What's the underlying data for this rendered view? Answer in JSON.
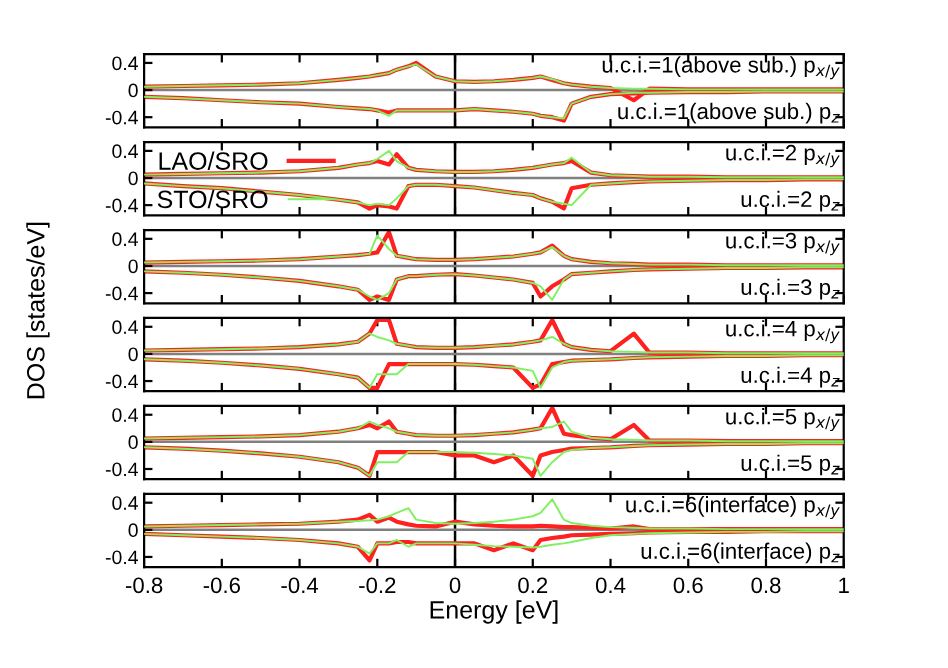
{
  "chart_data": [
    {
      "type": "line",
      "ylabel": "DOS [states/eV]",
      "annotations": [
        "u.c.i.=1(above sub.) p$_{x/y}$",
        "u.c.i.=1(above sub.) p$_{z}$"
      ],
      "tick_labels": "y",
      "x": [
        -0.8,
        -0.7,
        -0.6,
        -0.5,
        -0.4,
        -0.3,
        -0.25,
        -0.22,
        -0.2,
        -0.17,
        -0.15,
        -0.12,
        -0.1,
        -0.05,
        0,
        0.05,
        0.1,
        0.15,
        0.2,
        0.22,
        0.25,
        0.28,
        0.3,
        0.35,
        0.4,
        0.46,
        0.5,
        0.6,
        0.7,
        0.8,
        0.9,
        1.0
      ],
      "xlim": [
        -0.8,
        1
      ],
      "xticks": [
        -0.8,
        -0.6,
        -0.4,
        -0.2,
        0,
        0.2,
        0.4,
        0.6,
        0.8,
        1
      ],
      "ylim": [
        -0.55,
        0.53
      ],
      "yticks": [
        -0.4,
        0,
        0.4
      ],
      "ref_lines": [
        {
          "axis": "x",
          "value": 0,
          "color": "#000000"
        },
        {
          "axis": "y",
          "value": 0,
          "color": "#808080"
        }
      ],
      "series": [
        {
          "color": "#ff2020",
          "values": [
            0.05,
            0.06,
            0.07,
            0.08,
            0.1,
            0.15,
            0.18,
            0.2,
            0.22,
            0.25,
            0.3,
            0.35,
            0.4,
            0.2,
            0.13,
            0.12,
            0.13,
            0.15,
            0.18,
            0.2,
            0.15,
            0.1,
            0.08,
            0.05,
            0.03,
            -0.15,
            0.02,
            0.01,
            0.01,
            0.01,
            0.01,
            0.01
          ]
        },
        {
          "color": "#80f060",
          "values": [
            0.05,
            0.06,
            0.07,
            0.08,
            0.1,
            0.15,
            0.18,
            0.2,
            0.22,
            0.25,
            0.3,
            0.35,
            0.38,
            0.2,
            0.13,
            0.12,
            0.13,
            0.15,
            0.18,
            0.2,
            0.16,
            0.1,
            0.08,
            0.05,
            0.03,
            0.02,
            0.02,
            0.01,
            0.01,
            0.01,
            0.01,
            0.01
          ]
        },
        {
          "color": "#ff2020",
          "values": [
            -0.1,
            -0.12,
            -0.15,
            -0.18,
            -0.2,
            -0.25,
            -0.27,
            -0.28,
            -0.3,
            -0.33,
            -0.3,
            -0.3,
            -0.3,
            -0.3,
            -0.3,
            -0.28,
            -0.3,
            -0.32,
            -0.35,
            -0.38,
            -0.4,
            -0.45,
            -0.2,
            -0.1,
            -0.06,
            -0.05,
            -0.04,
            -0.03,
            -0.03,
            -0.02,
            -0.02,
            -0.02
          ]
        },
        {
          "color": "#80f060",
          "values": [
            -0.1,
            -0.12,
            -0.15,
            -0.18,
            -0.2,
            -0.25,
            -0.27,
            -0.28,
            -0.3,
            -0.38,
            -0.3,
            -0.3,
            -0.3,
            -0.3,
            -0.3,
            -0.28,
            -0.3,
            -0.32,
            -0.35,
            -0.38,
            -0.4,
            -0.42,
            -0.2,
            -0.1,
            -0.06,
            -0.04,
            -0.04,
            -0.03,
            -0.03,
            -0.02,
            -0.02,
            -0.02
          ]
        }
      ]
    },
    {
      "type": "line",
      "annotations": [
        "u.c.i.=2 p$_{x/y}$",
        "u.c.i.=2 p$_{z}$"
      ],
      "tick_labels": "y",
      "legend": "left",
      "x": [
        -0.8,
        -0.7,
        -0.6,
        -0.5,
        -0.4,
        -0.3,
        -0.25,
        -0.22,
        -0.2,
        -0.17,
        -0.15,
        -0.12,
        -0.1,
        -0.05,
        0,
        0.05,
        0.1,
        0.15,
        0.2,
        0.22,
        0.25,
        0.28,
        0.3,
        0.35,
        0.4,
        0.46,
        0.5,
        0.6,
        0.7,
        0.8,
        0.9,
        1.0
      ],
      "xlim": [
        -0.8,
        1
      ],
      "xticks": [
        -0.8,
        -0.6,
        -0.4,
        -0.2,
        0,
        0.2,
        0.4,
        0.6,
        0.8,
        1
      ],
      "ylim": [
        -0.55,
        0.53
      ],
      "yticks": [
        -0.4,
        0,
        0.4
      ],
      "ref_lines": [
        {
          "axis": "x",
          "value": 0,
          "color": "#000000"
        },
        {
          "axis": "y",
          "value": 0,
          "color": "#808080"
        }
      ],
      "series": [
        {
          "name": "LAO/SRO",
          "color": "#ff2020",
          "values": [
            0.05,
            0.06,
            0.07,
            0.08,
            0.1,
            0.15,
            0.2,
            0.22,
            0.25,
            0.2,
            0.35,
            0.15,
            0.12,
            0.1,
            0.09,
            0.09,
            0.1,
            0.12,
            0.15,
            0.17,
            0.2,
            0.22,
            0.25,
            0.08,
            0.04,
            0.03,
            0.02,
            0.02,
            0.01,
            0.01,
            0.01,
            0.01
          ]
        },
        {
          "name": "STO/SRO",
          "color": "#80f060",
          "values": [
            0.05,
            0.06,
            0.07,
            0.08,
            0.1,
            0.15,
            0.2,
            0.22,
            0.28,
            0.4,
            0.25,
            0.15,
            0.12,
            0.1,
            0.09,
            0.09,
            0.1,
            0.12,
            0.15,
            0.17,
            0.2,
            0.22,
            0.3,
            0.08,
            0.04,
            0.03,
            0.02,
            0.02,
            0.01,
            0.01,
            0.01,
            0.01
          ]
        },
        {
          "color": "#ff2020",
          "values": [
            -0.08,
            -0.12,
            -0.15,
            -0.2,
            -0.25,
            -0.32,
            -0.36,
            -0.45,
            -0.4,
            -0.42,
            -0.45,
            -0.12,
            -0.1,
            -0.1,
            -0.12,
            -0.14,
            -0.18,
            -0.22,
            -0.25,
            -0.3,
            -0.35,
            -0.45,
            -0.15,
            -0.1,
            -0.08,
            -0.06,
            -0.05,
            -0.04,
            -0.03,
            -0.03,
            -0.02,
            -0.02
          ]
        },
        {
          "color": "#80f060",
          "values": [
            -0.08,
            -0.12,
            -0.15,
            -0.2,
            -0.25,
            -0.32,
            -0.36,
            -0.4,
            -0.38,
            -0.4,
            -0.3,
            -0.12,
            -0.1,
            -0.1,
            -0.12,
            -0.14,
            -0.18,
            -0.22,
            -0.25,
            -0.3,
            -0.35,
            -0.38,
            -0.4,
            -0.1,
            -0.08,
            -0.06,
            -0.05,
            -0.04,
            -0.03,
            -0.03,
            -0.02,
            -0.02
          ]
        }
      ]
    },
    {
      "type": "line",
      "annotations": [
        "u.c.i.=3 p$_{x/y}$",
        "u.c.i.=3 p$_{z}$"
      ],
      "tick_labels": "y",
      "x": [
        -0.8,
        -0.7,
        -0.6,
        -0.5,
        -0.4,
        -0.3,
        -0.25,
        -0.22,
        -0.2,
        -0.17,
        -0.15,
        -0.12,
        -0.1,
        -0.05,
        0,
        0.05,
        0.1,
        0.15,
        0.2,
        0.22,
        0.25,
        0.28,
        0.3,
        0.35,
        0.4,
        0.46,
        0.5,
        0.6,
        0.7,
        0.8,
        0.9,
        1.0
      ],
      "xlim": [
        -0.8,
        1
      ],
      "xticks": [
        -0.8,
        -0.6,
        -0.4,
        -0.2,
        0,
        0.2,
        0.4,
        0.6,
        0.8,
        1
      ],
      "ylim": [
        -0.55,
        0.53
      ],
      "yticks": [
        -0.4,
        0,
        0.4
      ],
      "ref_lines": [
        {
          "axis": "x",
          "value": 0,
          "color": "#000000"
        },
        {
          "axis": "y",
          "value": 0,
          "color": "#808080"
        }
      ],
      "series": [
        {
          "color": "#ff2020",
          "values": [
            0.05,
            0.06,
            0.07,
            0.08,
            0.1,
            0.14,
            0.16,
            0.18,
            0.2,
            0.5,
            0.15,
            0.12,
            0.1,
            0.09,
            0.09,
            0.1,
            0.12,
            0.14,
            0.18,
            0.2,
            0.3,
            0.15,
            0.1,
            0.06,
            0.04,
            0.03,
            0.02,
            0.02,
            0.01,
            0.01,
            0.01,
            0.01
          ]
        },
        {
          "color": "#80f060",
          "values": [
            0.05,
            0.06,
            0.07,
            0.08,
            0.1,
            0.14,
            0.16,
            0.18,
            0.45,
            0.25,
            0.15,
            0.12,
            0.1,
            0.09,
            0.09,
            0.1,
            0.12,
            0.14,
            0.18,
            0.2,
            0.28,
            0.15,
            0.1,
            0.06,
            0.04,
            0.03,
            0.02,
            0.02,
            0.01,
            0.01,
            0.01,
            0.01
          ]
        },
        {
          "color": "#ff2020",
          "values": [
            -0.08,
            -0.1,
            -0.13,
            -0.17,
            -0.22,
            -0.3,
            -0.35,
            -0.5,
            -0.45,
            -0.5,
            -0.2,
            -0.15,
            -0.15,
            -0.13,
            -0.12,
            -0.14,
            -0.17,
            -0.2,
            -0.25,
            -0.45,
            -0.3,
            -0.2,
            -0.12,
            -0.1,
            -0.08,
            -0.06,
            -0.05,
            -0.04,
            -0.03,
            -0.03,
            -0.02,
            -0.02
          ]
        },
        {
          "color": "#80f060",
          "values": [
            -0.08,
            -0.1,
            -0.13,
            -0.17,
            -0.22,
            -0.3,
            -0.35,
            -0.45,
            -0.5,
            -0.4,
            -0.2,
            -0.15,
            -0.15,
            -0.13,
            -0.12,
            -0.14,
            -0.17,
            -0.2,
            -0.25,
            -0.3,
            -0.5,
            -0.2,
            -0.12,
            -0.1,
            -0.08,
            -0.06,
            -0.05,
            -0.04,
            -0.03,
            -0.03,
            -0.02,
            -0.02
          ]
        }
      ]
    },
    {
      "type": "line",
      "annotations": [
        "u.c.i.=4 p$_{x/y}$",
        "u.c.i.=4 p$_{z}$"
      ],
      "tick_labels": "y",
      "x": [
        -0.8,
        -0.7,
        -0.6,
        -0.5,
        -0.4,
        -0.3,
        -0.25,
        -0.22,
        -0.2,
        -0.17,
        -0.15,
        -0.12,
        -0.1,
        -0.05,
        0,
        0.05,
        0.1,
        0.15,
        0.2,
        0.22,
        0.25,
        0.28,
        0.3,
        0.35,
        0.4,
        0.46,
        0.5,
        0.6,
        0.7,
        0.8,
        0.9,
        1.0
      ],
      "xlim": [
        -0.8,
        1
      ],
      "xticks": [
        -0.8,
        -0.6,
        -0.4,
        -0.2,
        0,
        0.2,
        0.4,
        0.6,
        0.8,
        1
      ],
      "ylim": [
        -0.55,
        0.53
      ],
      "yticks": [
        -0.4,
        0,
        0.4
      ],
      "ref_lines": [
        {
          "axis": "x",
          "value": 0,
          "color": "#000000"
        },
        {
          "axis": "y",
          "value": 0,
          "color": "#808080"
        }
      ],
      "series": [
        {
          "color": "#ff2020",
          "values": [
            0.05,
            0.06,
            0.07,
            0.08,
            0.1,
            0.14,
            0.18,
            0.3,
            0.5,
            0.5,
            0.15,
            0.12,
            0.1,
            0.09,
            0.09,
            0.1,
            0.12,
            0.14,
            0.18,
            0.2,
            0.5,
            0.15,
            0.1,
            0.06,
            0.04,
            0.3,
            0.02,
            0.02,
            0.01,
            0.01,
            0.01,
            0.01
          ]
        },
        {
          "color": "#80f060",
          "values": [
            0.05,
            0.06,
            0.07,
            0.08,
            0.1,
            0.14,
            0.18,
            0.3,
            0.25,
            0.2,
            0.15,
            0.12,
            0.1,
            0.09,
            0.09,
            0.1,
            0.12,
            0.14,
            0.18,
            0.2,
            0.25,
            0.15,
            0.1,
            0.06,
            0.04,
            0.03,
            0.02,
            0.02,
            0.01,
            0.01,
            0.01,
            0.01
          ]
        },
        {
          "color": "#ff2020",
          "values": [
            -0.08,
            -0.1,
            -0.13,
            -0.17,
            -0.22,
            -0.3,
            -0.35,
            -0.5,
            -0.5,
            -0.15,
            -0.15,
            -0.15,
            -0.15,
            -0.15,
            -0.15,
            -0.16,
            -0.18,
            -0.2,
            -0.5,
            -0.45,
            -0.15,
            -0.12,
            -0.1,
            -0.09,
            -0.08,
            -0.06,
            -0.05,
            -0.04,
            -0.03,
            -0.03,
            -0.02,
            -0.02
          ]
        },
        {
          "color": "#80f060",
          "values": [
            -0.08,
            -0.1,
            -0.13,
            -0.17,
            -0.22,
            -0.3,
            -0.35,
            -0.5,
            -0.3,
            -0.3,
            -0.3,
            -0.15,
            -0.15,
            -0.15,
            -0.15,
            -0.16,
            -0.18,
            -0.2,
            -0.25,
            -0.5,
            -0.2,
            -0.12,
            -0.1,
            -0.09,
            -0.08,
            -0.06,
            -0.05,
            -0.04,
            -0.03,
            -0.03,
            -0.02,
            -0.02
          ]
        }
      ]
    },
    {
      "type": "line",
      "annotations": [
        "u.c.i.=5 p$_{x/y}$",
        "u.c.i.=5 p$_{z}$"
      ],
      "tick_labels": "y",
      "x": [
        -0.8,
        -0.7,
        -0.6,
        -0.5,
        -0.4,
        -0.3,
        -0.25,
        -0.22,
        -0.2,
        -0.17,
        -0.15,
        -0.12,
        -0.1,
        -0.05,
        0,
        0.05,
        0.1,
        0.15,
        0.2,
        0.22,
        0.25,
        0.28,
        0.3,
        0.35,
        0.4,
        0.46,
        0.5,
        0.6,
        0.7,
        0.8,
        0.9,
        1.0
      ],
      "xlim": [
        -0.8,
        1
      ],
      "xticks": [
        -0.8,
        -0.6,
        -0.4,
        -0.2,
        0,
        0.2,
        0.4,
        0.6,
        0.8,
        1
      ],
      "ylim": [
        -0.55,
        0.53
      ],
      "yticks": [
        -0.4,
        0,
        0.4
      ],
      "ref_lines": [
        {
          "axis": "x",
          "value": 0,
          "color": "#000000"
        },
        {
          "axis": "y",
          "value": 0,
          "color": "#808080"
        }
      ],
      "series": [
        {
          "color": "#ff2020",
          "values": [
            0.05,
            0.06,
            0.07,
            0.08,
            0.1,
            0.15,
            0.2,
            0.25,
            0.2,
            0.3,
            0.15,
            0.12,
            0.1,
            0.09,
            0.09,
            0.1,
            0.12,
            0.14,
            0.18,
            0.2,
            0.5,
            0.12,
            0.1,
            0.06,
            0.04,
            0.25,
            0.02,
            0.02,
            0.01,
            0.01,
            0.01,
            0.01
          ]
        },
        {
          "color": "#80f060",
          "values": [
            0.05,
            0.06,
            0.07,
            0.08,
            0.1,
            0.15,
            0.2,
            0.3,
            0.25,
            0.2,
            0.15,
            0.12,
            0.1,
            0.09,
            0.09,
            0.1,
            0.12,
            0.14,
            0.18,
            0.2,
            0.22,
            0.3,
            0.15,
            0.06,
            0.04,
            0.03,
            0.02,
            0.02,
            0.01,
            0.01,
            0.01,
            0.01
          ]
        },
        {
          "color": "#ff2020",
          "values": [
            -0.08,
            -0.1,
            -0.13,
            -0.17,
            -0.22,
            -0.3,
            -0.38,
            -0.5,
            -0.15,
            -0.15,
            -0.15,
            -0.15,
            -0.15,
            -0.15,
            -0.2,
            -0.2,
            -0.3,
            -0.2,
            -0.5,
            -0.2,
            -0.15,
            -0.12,
            -0.1,
            -0.09,
            -0.08,
            -0.06,
            -0.05,
            -0.04,
            -0.03,
            -0.03,
            -0.02,
            -0.02
          ]
        },
        {
          "color": "#80f060",
          "values": [
            -0.08,
            -0.1,
            -0.13,
            -0.17,
            -0.22,
            -0.3,
            -0.38,
            -0.5,
            -0.3,
            -0.3,
            -0.3,
            -0.15,
            -0.15,
            -0.15,
            -0.15,
            -0.16,
            -0.18,
            -0.2,
            -0.25,
            -0.5,
            -0.3,
            -0.15,
            -0.12,
            -0.09,
            -0.08,
            -0.06,
            -0.05,
            -0.04,
            -0.03,
            -0.03,
            -0.02,
            -0.02
          ]
        }
      ]
    },
    {
      "type": "line",
      "xlabel": "Energy [eV]",
      "annotations": [
        "u.c.i.=6(interface) p$_{x/y}$",
        "u.c.i.=6(interface) p$_{z}$"
      ],
      "x": [
        -0.8,
        -0.7,
        -0.6,
        -0.5,
        -0.4,
        -0.3,
        -0.25,
        -0.22,
        -0.2,
        -0.17,
        -0.15,
        -0.12,
        -0.1,
        -0.05,
        0,
        0.05,
        0.1,
        0.15,
        0.2,
        0.22,
        0.25,
        0.28,
        0.3,
        0.35,
        0.4,
        0.46,
        0.5,
        0.6,
        0.7,
        0.8,
        0.9,
        1.0
      ],
      "xlim": [
        -0.8,
        1
      ],
      "xticks": [
        -0.8,
        -0.6,
        -0.4,
        -0.2,
        0,
        0.2,
        0.4,
        0.6,
        0.8,
        1
      ],
      "ylim": [
        -0.55,
        0.53
      ],
      "yticks": [
        -0.4,
        0,
        0.4
      ],
      "ref_lines": [
        {
          "axis": "x",
          "value": 0,
          "color": "#000000"
        },
        {
          "axis": "y",
          "value": 0,
          "color": "#808080"
        }
      ],
      "series": [
        {
          "color": "#ff2020",
          "values": [
            0.05,
            0.06,
            0.07,
            0.08,
            0.09,
            0.12,
            0.15,
            0.22,
            0.12,
            0.18,
            0.12,
            0.08,
            0.06,
            0.05,
            0.12,
            0.08,
            0.06,
            0.05,
            0.05,
            0.06,
            0.05,
            0.04,
            0.04,
            0.03,
            0.02,
            0.05,
            0.01,
            0.01,
            0.01,
            0.01,
            0.01,
            0.01
          ]
        },
        {
          "color": "#80f060",
          "values": [
            0.05,
            0.06,
            0.07,
            0.08,
            0.09,
            0.12,
            0.13,
            0.14,
            0.15,
            0.2,
            0.25,
            0.32,
            0.15,
            0.1,
            0.09,
            0.1,
            0.12,
            0.15,
            0.2,
            0.25,
            0.45,
            0.15,
            0.1,
            0.06,
            0.04,
            0.03,
            0.02,
            0.02,
            0.01,
            0.01,
            0.01,
            0.01
          ]
        },
        {
          "color": "#ff2020",
          "values": [
            -0.06,
            -0.08,
            -0.1,
            -0.12,
            -0.15,
            -0.2,
            -0.25,
            -0.45,
            -0.2,
            -0.2,
            -0.18,
            -0.18,
            -0.2,
            -0.2,
            -0.2,
            -0.2,
            -0.3,
            -0.2,
            -0.3,
            -0.15,
            -0.12,
            -0.1,
            -0.08,
            -0.07,
            -0.06,
            -0.05,
            -0.04,
            -0.03,
            -0.03,
            -0.02,
            -0.02,
            -0.02
          ]
        },
        {
          "color": "#80f060",
          "values": [
            -0.06,
            -0.08,
            -0.1,
            -0.12,
            -0.15,
            -0.2,
            -0.25,
            -0.35,
            -0.2,
            -0.2,
            -0.15,
            -0.25,
            -0.2,
            -0.2,
            -0.2,
            -0.22,
            -0.24,
            -0.25,
            -0.26,
            -0.25,
            -0.22,
            -0.2,
            -0.18,
            -0.12,
            -0.08,
            -0.06,
            -0.05,
            -0.04,
            -0.03,
            -0.03,
            -0.02,
            -0.02
          ]
        }
      ]
    }
  ]
}
